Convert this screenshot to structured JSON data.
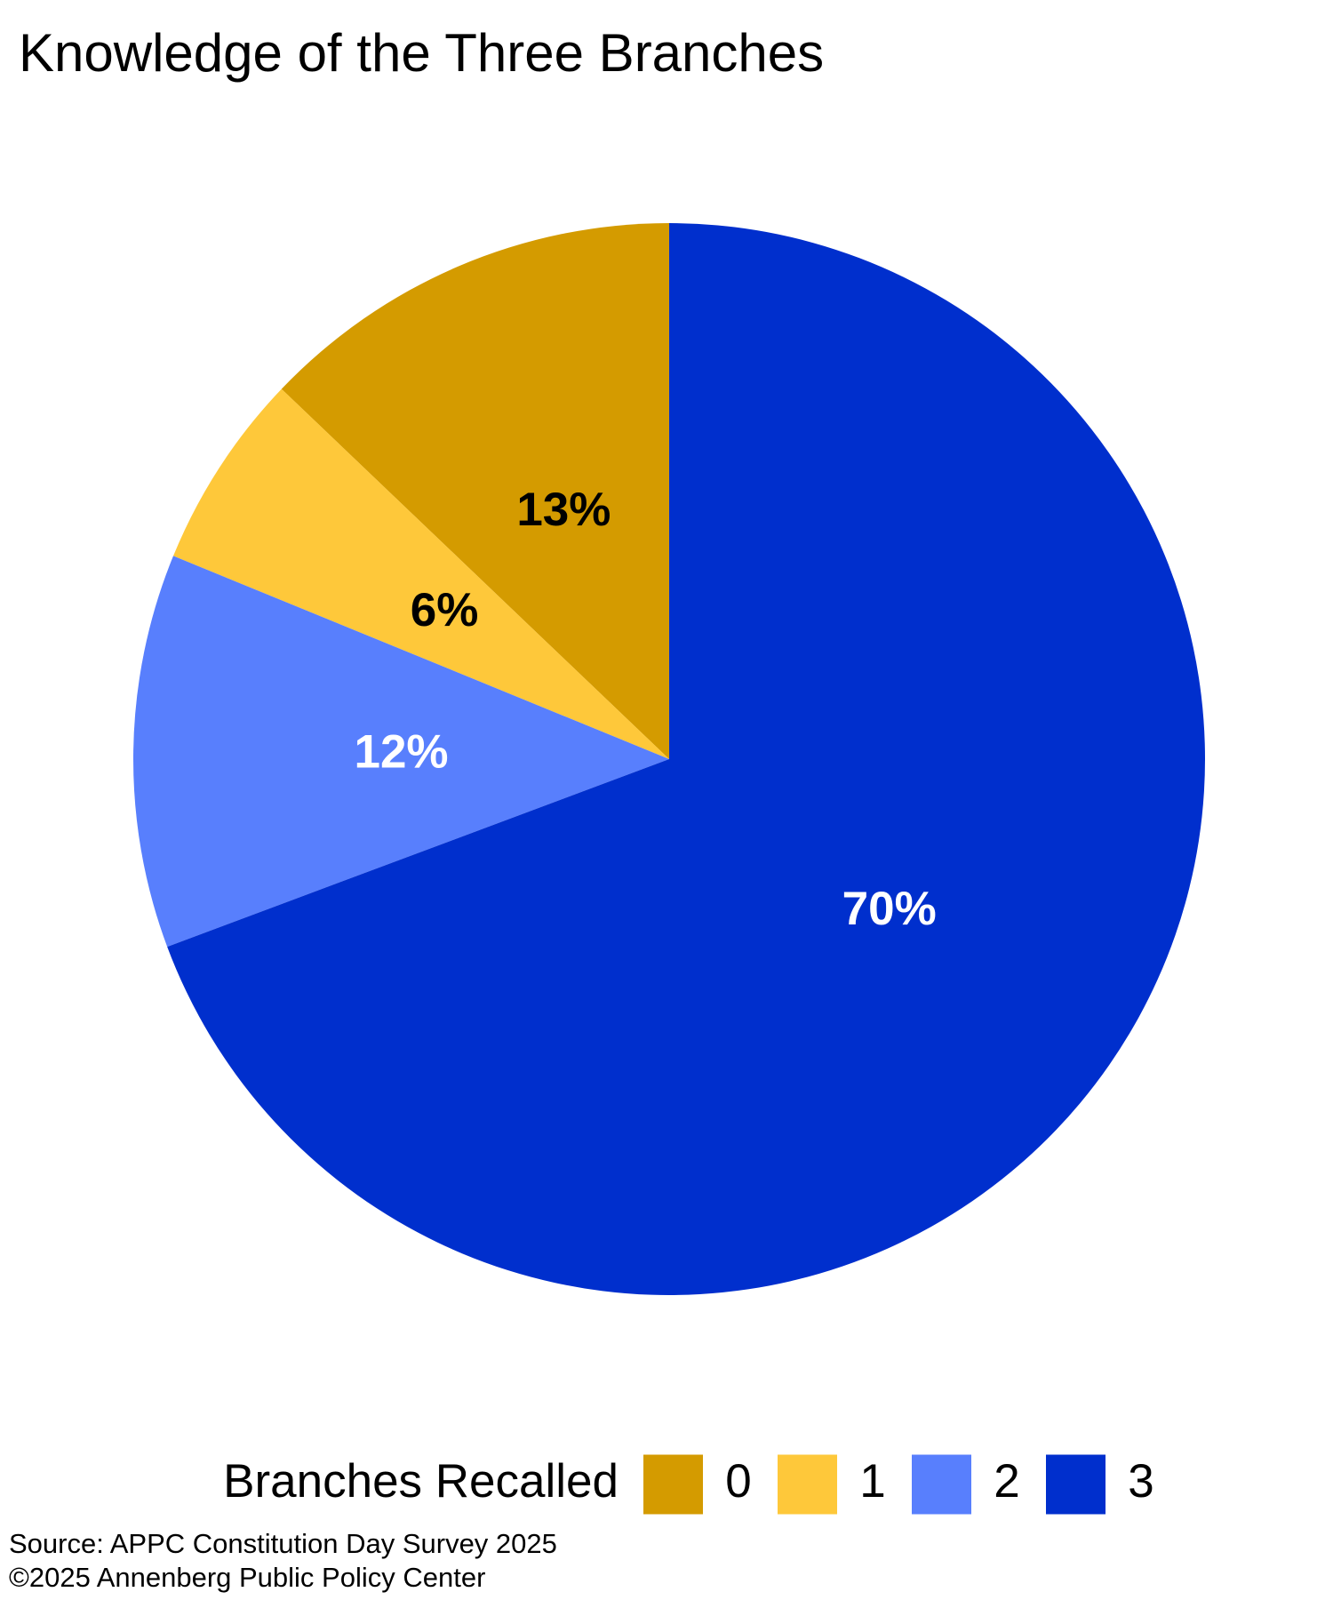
{
  "chart_data": {
    "type": "pie",
    "title": "Knowledge of the Three Branches",
    "categories": [
      "0",
      "1",
      "2",
      "3"
    ],
    "values": [
      13,
      6,
      12,
      70
    ],
    "value_labels": [
      "13%",
      "6%",
      "12%",
      "70%"
    ],
    "colors": [
      "#d49b00",
      "#fec83a",
      "#587ffd",
      "#002fcd"
    ],
    "label_colors": [
      "#000000",
      "#000000",
      "#ffffff",
      "#ffffff"
    ],
    "direction": "counterclockwise",
    "legend_title": "Branches Recalled",
    "legend": "bottom",
    "source": [
      "Source: APPC Constitution Day Survey 2025",
      "©2025 Annenberg Public Policy Center"
    ]
  }
}
